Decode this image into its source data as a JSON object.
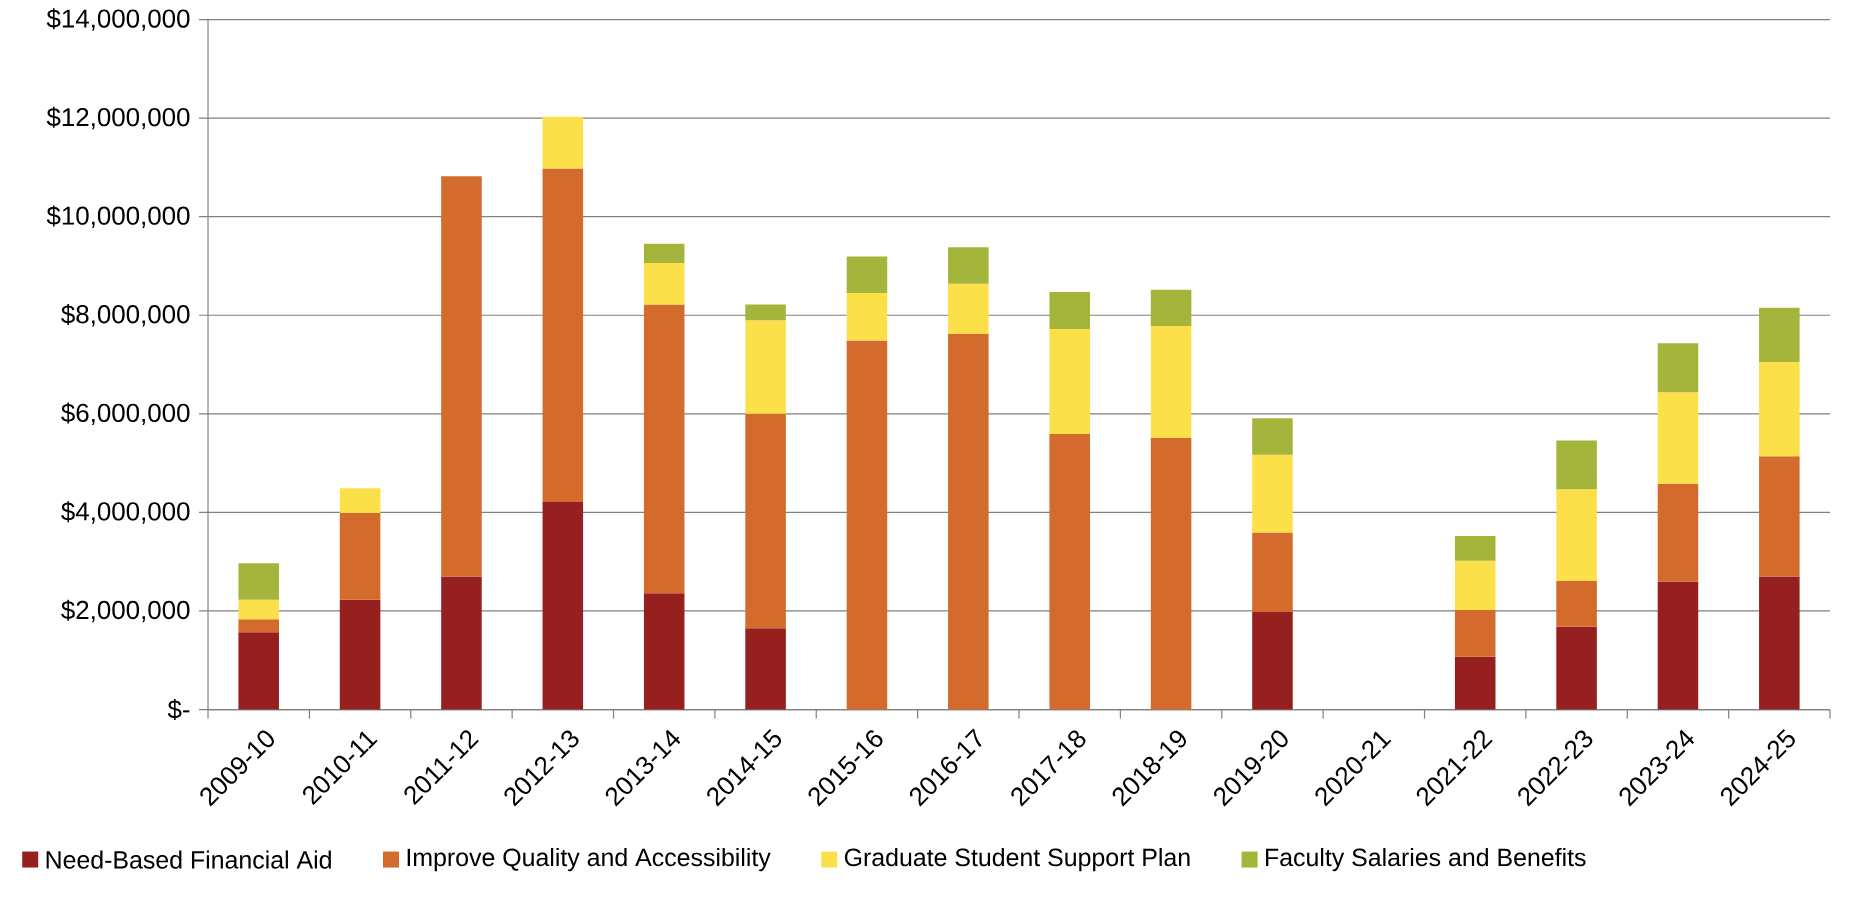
{
  "chart_data": {
    "type": "bar",
    "stacked": true,
    "grid": "y",
    "legend": "bottom",
    "categories": [
      "2009-10",
      "2010-11",
      "2011-12",
      "2012-13",
      "2013-14",
      "2014-15",
      "2015-16",
      "2016-17",
      "2017-18",
      "2018-19",
      "2019-20",
      "2020-21",
      "2021-22",
      "2022-23",
      "2023-24",
      "2024-25"
    ],
    "series": [
      {
        "name": "Need-Based Financial Aid",
        "color": "#95201f",
        "values": [
          1570000,
          2230000,
          2700000,
          4210000,
          2360000,
          1650000,
          null,
          null,
          null,
          null,
          1980000,
          null,
          1070000,
          1680000,
          2600000,
          2700000
        ]
      },
      {
        "name": "Improve Quality and Accessibility",
        "color": "#d26b2b",
        "values": [
          260000,
          1760000,
          8120000,
          6770000,
          5860000,
          4350000,
          7490000,
          7620000,
          5590000,
          5510000,
          1610000,
          null,
          950000,
          930000,
          1980000,
          2440000
        ]
      },
      {
        "name": "Graduate Student Support Plan",
        "color": "#fce04a",
        "values": [
          400000,
          500000,
          null,
          1050000,
          840000,
          1900000,
          960000,
          1020000,
          2130000,
          2270000,
          1580000,
          null,
          1000000,
          1860000,
          1860000,
          1910000
        ]
      },
      {
        "name": "Faculty Salaries and Benefits",
        "color": "#a5b43b",
        "values": [
          740000,
          null,
          null,
          null,
          390000,
          320000,
          740000,
          740000,
          750000,
          740000,
          740000,
          null,
          500000,
          990000,
          990000,
          1100000
        ]
      }
    ],
    "ylim": [
      0,
      14000000
    ],
    "yticks": [
      {
        "value": 0,
        "label": "$-"
      },
      {
        "value": 2000000,
        "label": "$2,000,000"
      },
      {
        "value": 4000000,
        "label": "$4,000,000"
      },
      {
        "value": 6000000,
        "label": "$6,000,000"
      },
      {
        "value": 8000000,
        "label": "$8,000,000"
      },
      {
        "value": 10000000,
        "label": "$10,000,000"
      },
      {
        "value": 12000000,
        "label": "$12,000,000"
      },
      {
        "value": 14000000,
        "label": "$14,000,000"
      }
    ]
  }
}
